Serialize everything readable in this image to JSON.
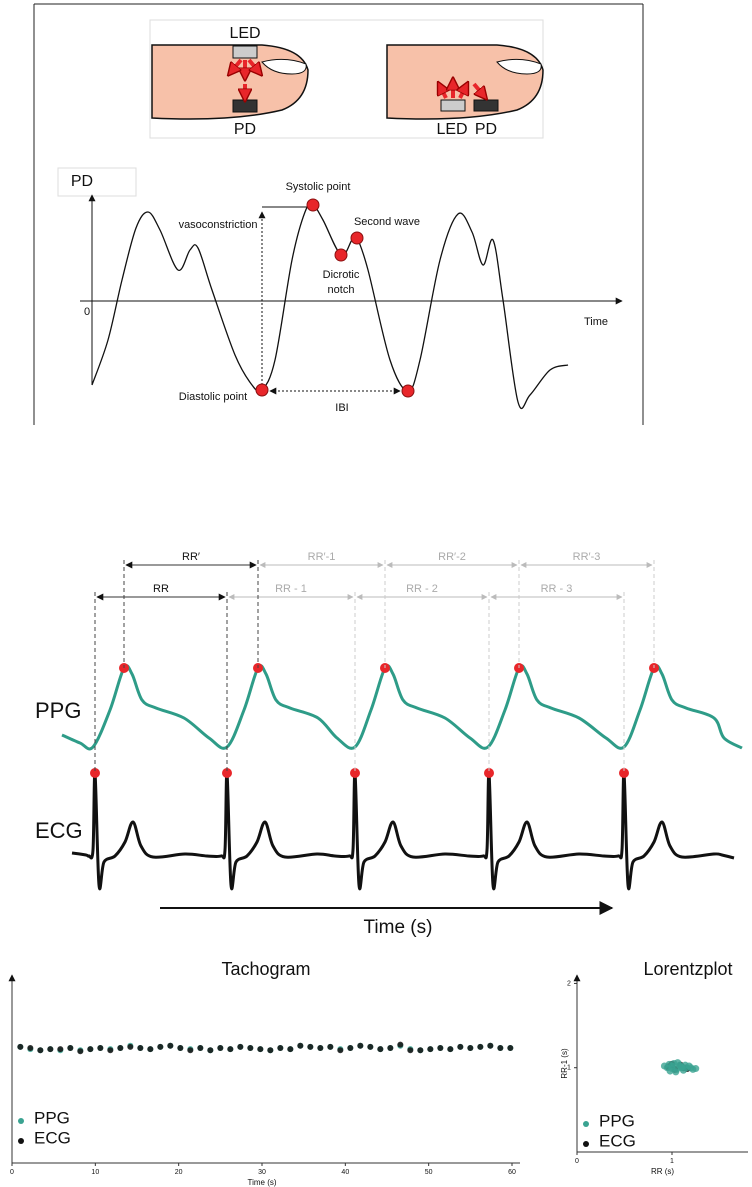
{
  "sensor_figure": {
    "transmission": {
      "led": "LED",
      "pd": "PD"
    },
    "reflection": {
      "led": "LED",
      "pd": "PD"
    }
  },
  "ppg_waveform": {
    "y_label": "PD",
    "origin": "0",
    "x_label": "Time",
    "annotations": {
      "systolic": "Systolic point",
      "vasoconstriction": "vasoconstriction",
      "second_wave": "Second wave",
      "dicrotic": [
        "Dicrotic",
        "notch"
      ],
      "diastolic": "Diastolic point",
      "ibi": "IBI"
    }
  },
  "intervals_figure": {
    "rr_prime": [
      "RR′",
      "RR′-1",
      "RR′-2",
      "RR′-3"
    ],
    "rr": [
      "RR",
      "RR - 1",
      "RR - 2",
      "RR - 3"
    ],
    "ppg": "PPG",
    "ecg": "ECG",
    "x_label": "Time (s)"
  },
  "chart_data": [
    {
      "type": "scatter",
      "title": "Tachogram",
      "x_label": "Time (s)",
      "x": [
        1.0,
        2.2,
        3.4,
        4.6,
        5.8,
        7.0,
        8.2,
        9.4,
        10.6,
        11.8,
        13.0,
        14.2,
        15.4,
        16.6,
        17.8,
        19.0,
        20.2,
        21.4,
        22.6,
        23.8,
        25.0,
        26.2,
        27.4,
        28.6,
        29.8,
        31.0,
        32.2,
        33.4,
        34.6,
        35.8,
        37.0,
        38.2,
        39.4,
        40.6,
        41.8,
        43.0,
        44.2,
        45.4,
        46.6,
        47.8,
        49.0,
        50.2,
        51.4,
        52.6,
        53.8,
        55.0,
        56.2,
        57.4,
        58.6,
        59.8
      ],
      "xlim": [
        0,
        60
      ],
      "xticks": [
        0,
        10,
        20,
        30,
        40,
        50,
        60
      ],
      "ylim": [
        0,
        1.7
      ],
      "legend": "lower left",
      "series": [
        {
          "name": "PPG",
          "color": "#3aa391",
          "values": [
            1.05,
            1.03,
            1.02,
            1.03,
            1.02,
            1.04,
            1.02,
            1.03,
            1.04,
            1.03,
            1.04,
            1.06,
            1.04,
            1.03,
            1.05,
            1.06,
            1.04,
            1.03,
            1.04,
            1.02,
            1.04,
            1.03,
            1.05,
            1.04,
            1.03,
            1.02,
            1.04,
            1.03,
            1.06,
            1.05,
            1.04,
            1.05,
            1.03,
            1.04,
            1.06,
            1.05,
            1.03,
            1.04,
            1.06,
            1.03,
            1.02,
            1.03,
            1.04,
            1.03,
            1.05,
            1.04,
            1.05,
            1.06,
            1.04,
            1.04
          ]
        },
        {
          "name": "ECG",
          "color": "#111111",
          "values": [
            1.05,
            1.04,
            1.02,
            1.03,
            1.03,
            1.04,
            1.01,
            1.03,
            1.04,
            1.02,
            1.04,
            1.05,
            1.04,
            1.03,
            1.05,
            1.06,
            1.04,
            1.02,
            1.04,
            1.02,
            1.04,
            1.03,
            1.05,
            1.04,
            1.03,
            1.02,
            1.04,
            1.03,
            1.06,
            1.05,
            1.04,
            1.05,
            1.02,
            1.04,
            1.06,
            1.05,
            1.03,
            1.04,
            1.07,
            1.02,
            1.02,
            1.03,
            1.04,
            1.03,
            1.05,
            1.04,
            1.05,
            1.06,
            1.04,
            1.04
          ]
        }
      ]
    },
    {
      "type": "scatter",
      "title": "Lorentzplot",
      "x_label": "RR (s)",
      "y_label": "RR-1 (s)",
      "xlim": [
        0,
        1.8
      ],
      "xticks": [
        0,
        1
      ],
      "ylim": [
        0,
        2.1
      ],
      "yticks": [
        1,
        2
      ],
      "legend": "lower left",
      "series": [
        {
          "name": "ECG",
          "color": "#111111",
          "x": [
            0.96,
            1.03,
            1.09,
            1.16,
            1.0,
            1.12
          ],
          "values": [
            1.01,
            0.98,
            1.03,
            0.99,
            1.04,
            1.0
          ]
        },
        {
          "name": "PPG",
          "color": "#3aa391",
          "x": [
            0.95,
            1.0,
            1.05,
            1.1,
            1.15,
            0.98,
            1.02,
            1.08,
            1.12,
            1.2,
            0.92,
            1.0,
            1.06,
            1.14,
            1.22,
            0.97,
            1.04,
            1.1,
            1.18,
            1.25
          ],
          "values": [
            1.0,
            1.02,
            0.98,
            1.01,
            1.0,
            0.96,
            1.05,
            1.03,
            0.97,
            1.0,
            1.02,
            0.99,
            1.06,
            1.03,
            0.98,
            1.04,
            0.95,
            1.0,
            1.02,
            0.99
          ]
        }
      ]
    }
  ]
}
